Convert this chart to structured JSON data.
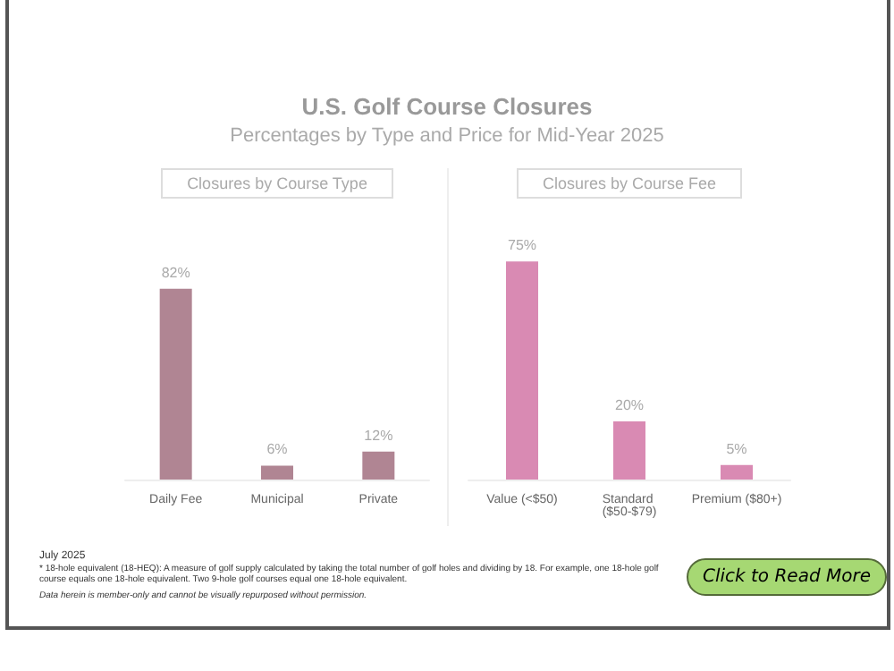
{
  "chart_data": [
    {
      "type": "bar",
      "title": "Closures by Course Type",
      "categories": [
        "Daily Fee",
        "Municipal",
        "Private"
      ],
      "values": [
        82,
        6,
        12
      ],
      "color": "#b08593",
      "value_labels": [
        "82%",
        "6%",
        "12%"
      ],
      "annotations": [
        "U.S. Golf Course Closures",
        "Percentages by Type and Price for Mid-Year 2025"
      ]
    },
    {
      "type": "bar",
      "title": "Closures by Course Fee",
      "categories": [
        "Value (<$50)",
        "Standard ($50-$79)",
        "Premium ($80+)"
      ],
      "values": [
        75,
        20,
        5
      ],
      "color": "#d98ab3",
      "value_labels": [
        "75%",
        "20%",
        "5%"
      ],
      "annotations": [
        "July 2025",
        "* 18-hole equivalent (18-HEQ): A measure of golf supply calculated by taking the total number of golf holes and dividing by 18. For example, one 18-hole golf course equals one 18-hole equivalent. Two 9-hole golf courses equal one 18-hole equivalent.",
        "Data herein is member-only and cannot be visually repurposed without permission.",
        "Click to Read More"
      ]
    }
  ]
}
